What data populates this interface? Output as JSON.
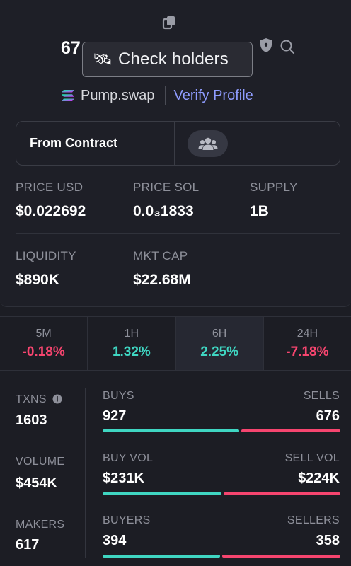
{
  "header": {
    "title_fragment": "67",
    "tooltip_icon": "🛰",
    "tooltip_text": "Check holders",
    "dex_name": "Pump.swap",
    "verify_label": "Verify Profile"
  },
  "contract": {
    "label": "From Contract"
  },
  "stats": {
    "price_usd_label": "PRICE USD",
    "price_usd": "$0.022692",
    "price_sol_label": "PRICE SOL",
    "price_sol": "0.0₃1833",
    "supply_label": "SUPPLY",
    "supply": "1B",
    "liquidity_label": "LIQUIDITY",
    "liquidity": "$890K",
    "mkt_cap_label": "MKT CAP",
    "mkt_cap": "$22.68M"
  },
  "timeframes": [
    {
      "label": "5M",
      "value": "-0.18%",
      "direction": "down"
    },
    {
      "label": "1H",
      "value": "1.32%",
      "direction": "up"
    },
    {
      "label": "6H",
      "value": "2.25%",
      "direction": "up",
      "active": true
    },
    {
      "label": "24H",
      "value": "-7.18%",
      "direction": "down"
    }
  ],
  "activity": {
    "txns_label": "TXNS",
    "txns": "1603",
    "volume_label": "VOLUME",
    "volume": "$454K",
    "makers_label": "MAKERS",
    "makers": "617",
    "buys_label": "BUYS",
    "buys": "927",
    "sells_label": "SELLS",
    "sells": "676",
    "buy_vol_label": "BUY VOL",
    "buy_vol": "$231K",
    "sell_vol_label": "SELL VOL",
    "sell_vol": "$224K",
    "buyers_label": "BUYERS",
    "buyers": "394",
    "sellers_label": "SELLERS",
    "sellers": "358"
  },
  "colors": {
    "buy": "#3fd6c2",
    "sell": "#f6456f",
    "link": "#8f9cff"
  },
  "icons": [
    "copy-icon",
    "satellite-icon",
    "shield-icon",
    "search-icon",
    "solana-icon",
    "users-icon",
    "info-icon"
  ]
}
